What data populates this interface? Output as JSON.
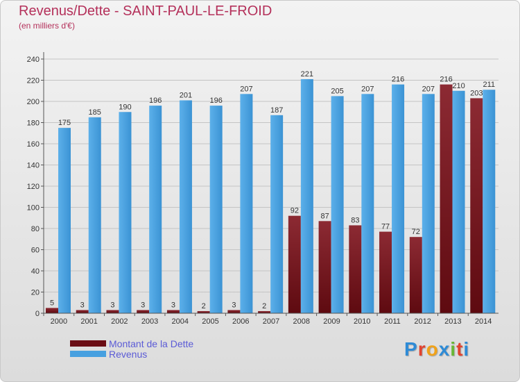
{
  "header": {
    "title": "Revenus/Dette - SAINT-PAUL-LE-FROID",
    "subtitle": "(en milliers d'€)"
  },
  "colors": {
    "debt": "#7a1e28",
    "revenue": "#47a0e0",
    "title": "#b4305a",
    "legend_text": "#5b5bd6"
  },
  "legend": {
    "items": [
      {
        "label": "Montant de la Dette",
        "color": "#6b0d14"
      },
      {
        "label": "Revenus",
        "color": "#47a0e0"
      }
    ]
  },
  "logo": {
    "text": "Proxiti"
  },
  "chart_data": {
    "type": "bar",
    "categories": [
      "2000",
      "2001",
      "2002",
      "2003",
      "2004",
      "2005",
      "2006",
      "2007",
      "2008",
      "2009",
      "2010",
      "2011",
      "2012",
      "2013",
      "2014"
    ],
    "series": [
      {
        "name": "Montant de la Dette",
        "values": [
          5,
          3,
          3,
          3,
          3,
          2,
          3,
          2,
          92,
          87,
          83,
          77,
          72,
          216,
          203
        ]
      },
      {
        "name": "Revenus",
        "values": [
          175,
          185,
          190,
          196,
          201,
          196,
          207,
          187,
          221,
          205,
          207,
          216,
          207,
          210,
          211
        ]
      }
    ],
    "ylim": [
      0,
      240
    ],
    "yticks": [
      0,
      20,
      40,
      60,
      80,
      100,
      120,
      140,
      160,
      180,
      200,
      220,
      240
    ],
    "grid": true,
    "legend_position": "bottom-left"
  }
}
